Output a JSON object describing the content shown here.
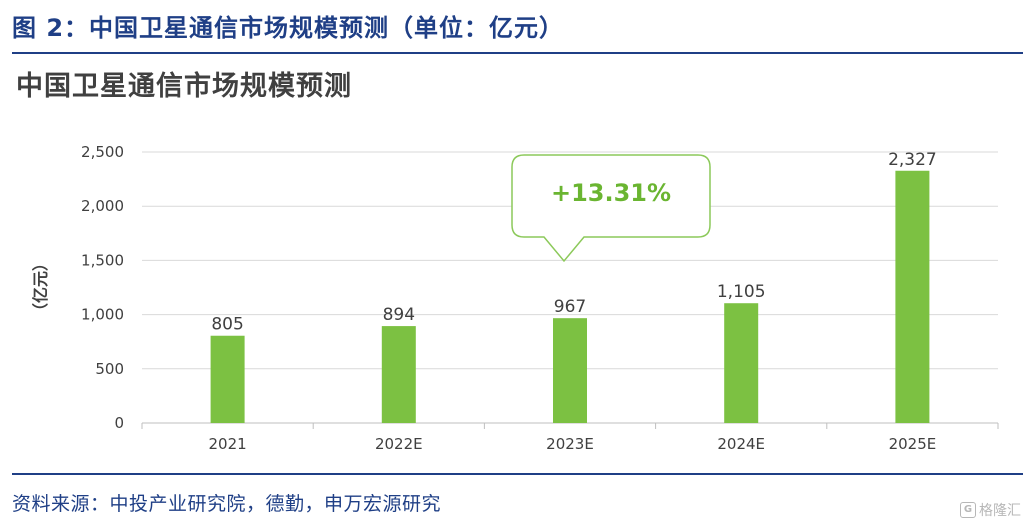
{
  "figure_title": "图 2：中国卫星通信市场规模预测（单位：亿元）",
  "chart_data": {
    "type": "bar",
    "title": "中国卫星通信市场规模预测",
    "ylabel": "（亿元）",
    "xlabel": "",
    "categories": [
      "2021",
      "2022E",
      "2023E",
      "2024E",
      "2025E"
    ],
    "values": [
      805,
      894,
      967,
      1105,
      2327
    ],
    "value_labels": [
      "805",
      "894",
      "967",
      "1,105",
      "2,327"
    ],
    "ylim": [
      0,
      2500
    ],
    "yticks": [
      0,
      500,
      1000,
      1500,
      2000,
      2500
    ],
    "ytick_labels": [
      "0",
      "500",
      "1,000",
      "1,500",
      "2,000",
      "2,500"
    ],
    "grid": true,
    "bar_color": "#7cc142",
    "grid_color": "#d9d9d9",
    "annotation": {
      "text": "+13.31%",
      "category": "2023E",
      "color": "#6ab531"
    }
  },
  "source": "资料来源：中投产业研究院，德勤，申万宏源研究",
  "watermark": "格隆汇"
}
